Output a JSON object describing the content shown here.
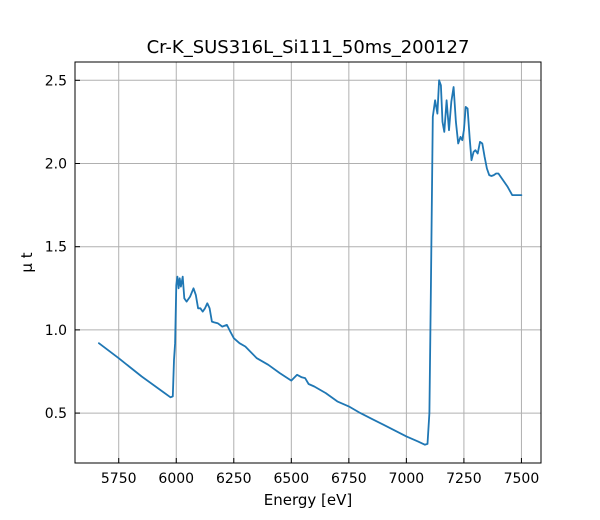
{
  "chart_data": {
    "type": "line",
    "title": "Cr-K_SUS316L_Si111_50ms_200127",
    "xlabel": "Energy [eV]",
    "ylabel": "μ t",
    "xlim": [
      5560,
      7585
    ],
    "ylim": [
      0.2,
      2.61
    ],
    "grid": true,
    "xticks": [
      5750,
      6000,
      6250,
      6500,
      6750,
      7000,
      7250,
      7500
    ],
    "yticks": [
      0.5,
      1.0,
      1.5,
      2.0,
      2.5
    ],
    "xtick_labels": [
      "5750",
      "6000",
      "6250",
      "6500",
      "6750",
      "7000",
      "7250",
      "7500"
    ],
    "ytick_labels": [
      "0.5",
      "1.0",
      "1.5",
      "2.0",
      "2.5"
    ],
    "series": [
      {
        "color": "#1f77b4",
        "x": [
          5664,
          5750,
          5850,
          5950,
          5975,
          5985,
          5990,
          5995,
          6000,
          6005,
          6010,
          6015,
          6020,
          6028,
          6035,
          6045,
          6060,
          6075,
          6085,
          6095,
          6105,
          6115,
          6125,
          6135,
          6145,
          6155,
          6165,
          6180,
          6200,
          6220,
          6235,
          6250,
          6275,
          6300,
          6350,
          6400,
          6450,
          6500,
          6525,
          6545,
          6560,
          6575,
          6600,
          6650,
          6700,
          6750,
          6800,
          6850,
          6900,
          6950,
          7000,
          7050,
          7080,
          7092,
          7100,
          7106,
          7115,
          7125,
          7135,
          7142,
          7150,
          7157,
          7165,
          7175,
          7185,
          7195,
          7205,
          7215,
          7225,
          7235,
          7243,
          7250,
          7258,
          7266,
          7275,
          7283,
          7292,
          7300,
          7310,
          7320,
          7330,
          7340,
          7350,
          7360,
          7370,
          7380,
          7390,
          7400,
          7420,
          7440,
          7460,
          7480,
          7500
        ],
        "y": [
          0.92,
          0.83,
          0.72,
          0.62,
          0.595,
          0.6,
          0.82,
          0.92,
          1.27,
          1.32,
          1.25,
          1.31,
          1.26,
          1.32,
          1.19,
          1.17,
          1.2,
          1.25,
          1.21,
          1.13,
          1.13,
          1.11,
          1.13,
          1.16,
          1.13,
          1.05,
          1.045,
          1.04,
          1.02,
          1.03,
          0.99,
          0.95,
          0.92,
          0.9,
          0.83,
          0.79,
          0.74,
          0.695,
          0.73,
          0.715,
          0.71,
          0.675,
          0.66,
          0.62,
          0.57,
          0.54,
          0.5,
          0.465,
          0.43,
          0.395,
          0.36,
          0.33,
          0.31,
          0.315,
          0.5,
          1.2,
          2.28,
          2.38,
          2.3,
          2.5,
          2.47,
          2.25,
          2.19,
          2.38,
          2.2,
          2.37,
          2.46,
          2.25,
          2.12,
          2.16,
          2.14,
          2.2,
          2.34,
          2.33,
          2.15,
          2.02,
          2.07,
          2.08,
          2.06,
          2.13,
          2.12,
          2.04,
          1.97,
          1.93,
          1.925,
          1.93,
          1.94,
          1.94,
          1.9,
          1.86,
          1.81,
          1.81,
          1.81
        ]
      }
    ]
  }
}
